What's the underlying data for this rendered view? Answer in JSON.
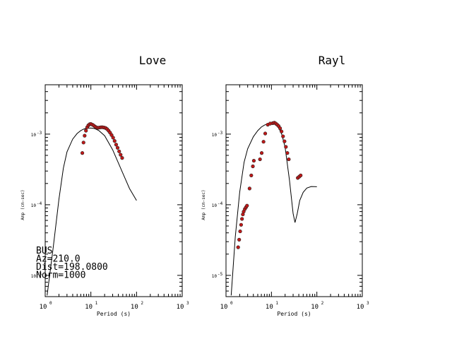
{
  "chart_data": [
    {
      "type": "line",
      "title": "Love",
      "xlabel": "Period (s)",
      "ylabel": "Amp (cm-sec)",
      "xscale": "log",
      "yscale": "log",
      "xlim": [
        1,
        1000
      ],
      "ylim": [
        5e-06,
        0.005
      ],
      "x_ticks": [
        {
          "base": "10",
          "exp": "0"
        },
        {
          "base": "10",
          "exp": "1"
        },
        {
          "base": "10",
          "exp": "2"
        },
        {
          "base": "10",
          "exp": "3"
        }
      ],
      "y_ticks": [
        {
          "value": 0.001,
          "base": "10",
          "exp": "-3"
        },
        {
          "value": 0.0001,
          "base": "10",
          "exp": "-4"
        },
        {
          "value": 1e-05,
          "base": "10",
          "exp": "-5"
        }
      ],
      "info_lines": [
        "BUS",
        "Az=210.0",
        "Dist=198.0800",
        "Norm=1000"
      ],
      "series": [
        {
          "kind": "line",
          "color": "#000000",
          "points": [
            [
              1.1,
              5.2e-06
            ],
            [
              1.5,
              2.5e-05
            ],
            [
              2,
              0.00012
            ],
            [
              2.5,
              0.00033
            ],
            [
              3,
              0.00056
            ],
            [
              4,
              0.00085
            ],
            [
              5,
              0.00102
            ],
            [
              6,
              0.00112
            ],
            [
              7,
              0.00118
            ],
            [
              8,
              0.00121
            ],
            [
              10,
              0.00122
            ],
            [
              12,
              0.0012
            ],
            [
              15,
              0.00112
            ],
            [
              20,
              0.00095
            ],
            [
              30,
              0.0006
            ],
            [
              50,
              0.00028
            ],
            [
              70,
              0.00017
            ],
            [
              100,
              0.000115
            ]
          ]
        },
        {
          "kind": "scatter",
          "color": "#c01818",
          "points": [
            [
              6.5,
              0.00054
            ],
            [
              6.9,
              0.00076
            ],
            [
              7.3,
              0.00095
            ],
            [
              7.8,
              0.00112
            ],
            [
              8.3,
              0.00125
            ],
            [
              8.8,
              0.00133
            ],
            [
              9.4,
              0.00138
            ],
            [
              10,
              0.00139
            ],
            [
              10.8,
              0.00136
            ],
            [
              11.6,
              0.00132
            ],
            [
              12.5,
              0.00127
            ],
            [
              13.4,
              0.00124
            ],
            [
              14.4,
              0.00123
            ],
            [
              15.5,
              0.00124
            ],
            [
              16.7,
              0.00125
            ],
            [
              18,
              0.00125
            ],
            [
              19.4,
              0.00124
            ],
            [
              21,
              0.00122
            ],
            [
              22.6,
              0.00118
            ],
            [
              24.4,
              0.00112
            ],
            [
              26.3,
              0.00105
            ],
            [
              28.4,
              0.00097
            ],
            [
              30.7,
              0.00089
            ],
            [
              33.1,
              0.0008
            ],
            [
              35.7,
              0.00071
            ],
            [
              38.5,
              0.00064
            ],
            [
              41.6,
              0.00057
            ],
            [
              44.8,
              0.00051
            ],
            [
              48.4,
              0.00046
            ]
          ]
        }
      ]
    },
    {
      "type": "line",
      "title": "Rayl",
      "xlabel": "Period (s)",
      "ylabel": "Amp (cm-sec)",
      "xscale": "log",
      "yscale": "log",
      "xlim": [
        1,
        1000
      ],
      "ylim": [
        5e-06,
        0.005
      ],
      "x_ticks": [
        {
          "base": "10",
          "exp": "0"
        },
        {
          "base": "10",
          "exp": "1"
        },
        {
          "base": "10",
          "exp": "2"
        },
        {
          "base": "10",
          "exp": "3"
        }
      ],
      "y_ticks": [
        {
          "value": 0.001,
          "base": "10",
          "exp": "-3"
        },
        {
          "value": 0.0001,
          "base": "10",
          "exp": "-4"
        },
        {
          "value": 1e-05,
          "base": "10",
          "exp": "-5"
        }
      ],
      "series": [
        {
          "kind": "line",
          "color": "#000000",
          "points": [
            [
              1.3,
              5.2e-06
            ],
            [
              1.6,
              3.5e-05
            ],
            [
              2,
              0.00015
            ],
            [
              2.5,
              0.0004
            ],
            [
              3,
              0.00062
            ],
            [
              4,
              0.00092
            ],
            [
              5,
              0.00112
            ],
            [
              6,
              0.00126
            ],
            [
              7,
              0.00134
            ],
            [
              8,
              0.00139
            ],
            [
              10,
              0.00142
            ],
            [
              12,
              0.0014
            ],
            [
              14,
              0.00128
            ],
            [
              17,
              0.00098
            ],
            [
              20,
              0.00065
            ],
            [
              25,
              0.00022
            ],
            [
              30,
              7.5e-05
            ],
            [
              33,
              5.6e-05
            ],
            [
              37,
              7.5e-05
            ],
            [
              42,
              0.000115
            ],
            [
              50,
              0.00015
            ],
            [
              60,
              0.000172
            ],
            [
              75,
              0.000181
            ],
            [
              100,
              0.00018
            ]
          ]
        },
        {
          "kind": "scatter",
          "color": "#c01818",
          "points": [
            [
              1.85,
              2.5e-05
            ],
            [
              1.95,
              3.2e-05
            ],
            [
              2.05,
              4.2e-05
            ],
            [
              2.15,
              5.2e-05
            ],
            [
              2.25,
              6.3e-05
            ],
            [
              2.35,
              7.3e-05
            ],
            [
              2.45,
              8e-05
            ],
            [
              2.6,
              8.7e-05
            ],
            [
              2.75,
              9.2e-05
            ],
            [
              2.9,
              9.7e-05
            ],
            [
              3.3,
              0.00017
            ],
            [
              3.6,
              0.00026
            ],
            [
              3.9,
              0.00035
            ],
            [
              4.1,
              0.00042
            ],
            [
              5.6,
              0.00044
            ],
            [
              6.1,
              0.00054
            ],
            [
              6.7,
              0.00078
            ],
            [
              7.3,
              0.00102
            ],
            [
              8.3,
              0.00136
            ],
            [
              9.4,
              0.00141
            ],
            [
              10.7,
              0.00143
            ],
            [
              11.6,
              0.00145
            ],
            [
              12.5,
              0.00141
            ],
            [
              13.4,
              0.00136
            ],
            [
              14.4,
              0.0013
            ],
            [
              15.5,
              0.00121
            ],
            [
              16.7,
              0.00109
            ],
            [
              18,
              0.00093
            ],
            [
              19.4,
              0.00079
            ],
            [
              20.8,
              0.00066
            ],
            [
              22.4,
              0.00054
            ],
            [
              24.1,
              0.00044
            ],
            [
              38,
              0.00024
            ],
            [
              41,
              0.00025
            ],
            [
              44,
              0.00026
            ]
          ]
        }
      ]
    }
  ]
}
